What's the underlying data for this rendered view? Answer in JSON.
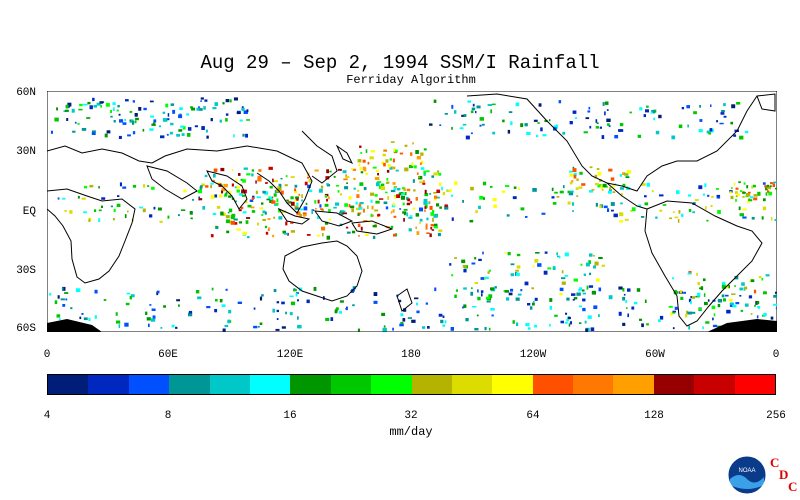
{
  "title": "Aug 29 – Sep 2, 1994 SSM/I Rainfall",
  "subtitle": "Ferriday Algorithm",
  "lat_labels": [
    "60N",
    "30N",
    "EQ",
    "30S",
    "60S"
  ],
  "lon_labels": [
    "0",
    "60E",
    "120E",
    "180",
    "120W",
    "60W",
    "0"
  ],
  "colorbar": {
    "colors": [
      "#001e78",
      "#0028c0",
      "#0050ff",
      "#009696",
      "#00c8c8",
      "#00ffff",
      "#009600",
      "#00c800",
      "#00ff00",
      "#b4b400",
      "#dcdc00",
      "#ffff00",
      "#ff5000",
      "#ff7800",
      "#ffa000",
      "#960000",
      "#c80000",
      "#ff0000"
    ],
    "tick_labels": [
      "4",
      "8",
      "16",
      "32",
      "64",
      "128",
      "256"
    ],
    "units": "mm/day"
  },
  "logo": {
    "name": "NOAA",
    "cdc_letters": [
      "C",
      "D",
      "C"
    ]
  },
  "colors": {
    "ocean_background": "#ffffff",
    "coastline": "#000000"
  }
}
